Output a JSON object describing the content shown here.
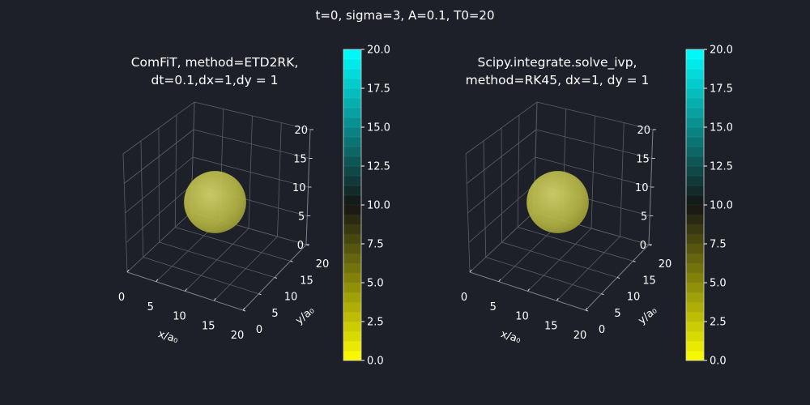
{
  "figure": {
    "suptitle": "t=0, sigma=3, A=0.1, T0=20"
  },
  "chart_data": [
    {
      "type": "scatter",
      "title_lines": [
        "ComFiT, method=ETD2RK,",
        "dt=0.1,dx=1,dy = 1"
      ],
      "xlabel": "x/a₀",
      "ylabel": "y/a₀",
      "zlabel": "",
      "xlim": [
        0,
        20
      ],
      "ylim": [
        0,
        20
      ],
      "zlim": [
        0,
        20
      ],
      "xticks": [
        "0",
        "5",
        "10",
        "15",
        "20"
      ],
      "yticks": [
        "0",
        "5",
        "10",
        "15",
        "20"
      ],
      "zticks": [
        "0",
        "5",
        "10",
        "15",
        "20"
      ],
      "feature": {
        "shape": "sphere",
        "center": [
          10,
          10,
          10
        ],
        "radius": 5,
        "color": "#c9c94a"
      },
      "colorbar": {
        "range": [
          0,
          20
        ],
        "tick_labels": [
          "0.0",
          "2.5",
          "5.0",
          "7.5",
          "10.0",
          "12.5",
          "15.0",
          "17.5",
          "20.0"
        ],
        "colors": [
          "#ffff00",
          "#141414",
          "#00ffff"
        ],
        "grid": true
      }
    },
    {
      "type": "scatter",
      "title_lines": [
        "Scipy.integrate.solve_ivp,",
        "method=RK45, dx=1, dy = 1"
      ],
      "xlabel": "x/a₀",
      "ylabel": "y/a₀",
      "zlabel": "",
      "xlim": [
        0,
        20
      ],
      "ylim": [
        0,
        20
      ],
      "zlim": [
        0,
        20
      ],
      "xticks": [
        "0",
        "5",
        "10",
        "15",
        "20"
      ],
      "yticks": [
        "0",
        "5",
        "10",
        "15",
        "20"
      ],
      "zticks": [
        "0",
        "5",
        "10",
        "15",
        "20"
      ],
      "feature": {
        "shape": "sphere",
        "center": [
          10,
          10,
          10
        ],
        "radius": 5,
        "color": "#c9c94a"
      },
      "colorbar": {
        "range": [
          0,
          20
        ],
        "tick_labels": [
          "0.0",
          "2.5",
          "5.0",
          "7.5",
          "10.0",
          "12.5",
          "15.0",
          "17.5",
          "20.0"
        ],
        "colors": [
          "#ffff00",
          "#141414",
          "#00ffff"
        ],
        "grid": true
      }
    }
  ]
}
